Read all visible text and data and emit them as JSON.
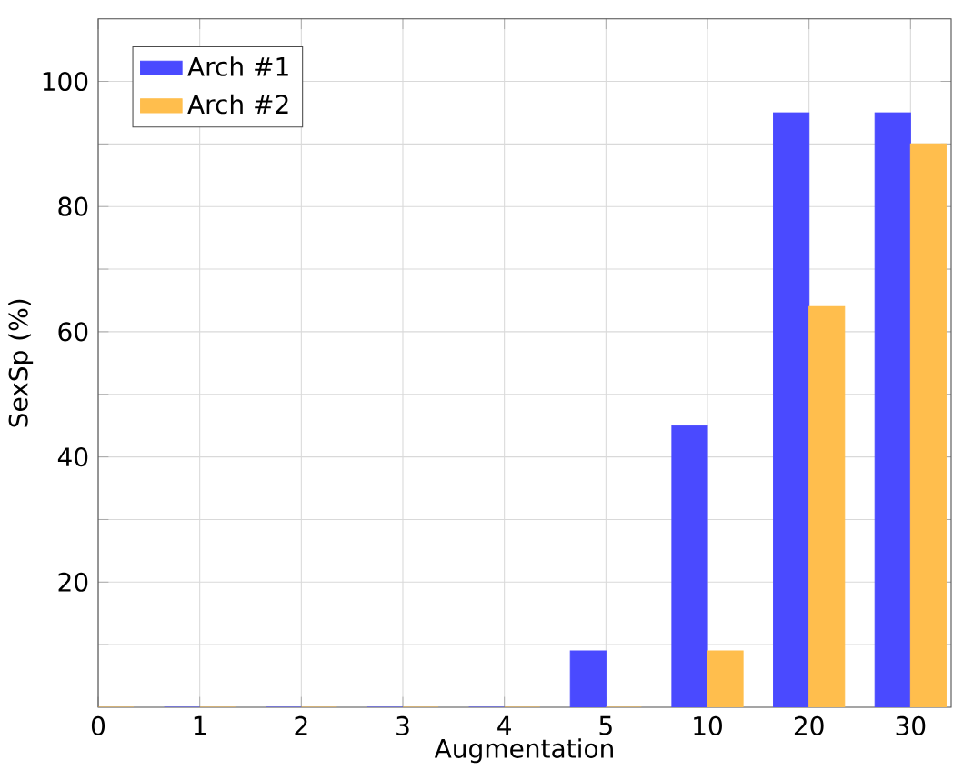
{
  "chart_data": {
    "type": "bar",
    "xlabel": "Augmentation",
    "ylabel": "SexSp (%)",
    "categories": [
      "0",
      "1",
      "2",
      "3",
      "4",
      "5",
      "10",
      "20",
      "30"
    ],
    "series": [
      {
        "name": "Arch #1",
        "color": "#4a4aff",
        "values": [
          0,
          0,
          0,
          0,
          0,
          9,
          45,
          95,
          95
        ]
      },
      {
        "name": "Arch #2",
        "color": "#ffbe4d",
        "values": [
          0,
          0,
          0,
          0,
          0,
          0,
          9,
          64,
          90
        ]
      }
    ],
    "ylim": [
      0,
      110
    ],
    "yticks": [
      {
        "value": 10,
        "label": null
      },
      20,
      {
        "value": 30,
        "label": null
      },
      40,
      {
        "value": 50,
        "label": null
      },
      60,
      {
        "value": 70,
        "label": null
      },
      80,
      {
        "value": 90,
        "label": null
      },
      100
    ],
    "grid": true,
    "legend": "top left"
  }
}
